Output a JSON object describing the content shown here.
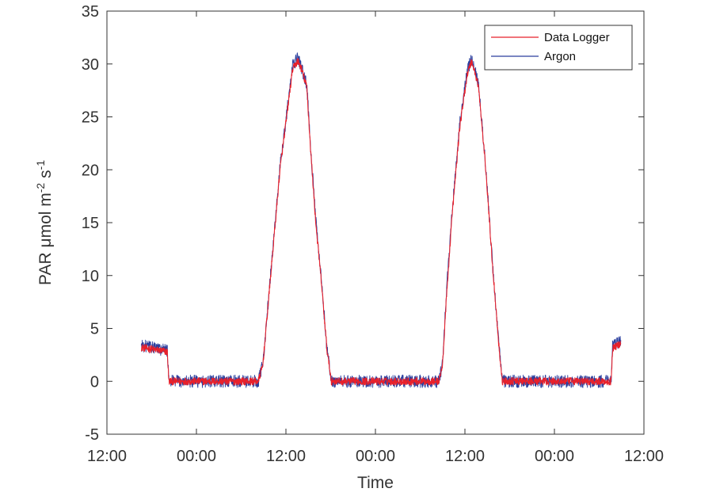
{
  "chart_data": {
    "type": "line",
    "title": "",
    "xlabel": "Time",
    "ylabel": "PAR μmol m-2 s-1",
    "ylabel_parts": {
      "main": "PAR  μmol m",
      "exp1": "-2",
      "mid": " s",
      "exp2": "-1"
    },
    "x_ticks": [
      "12:00",
      "00:00",
      "12:00",
      "00:00",
      "12:00",
      "00:00",
      "12:00"
    ],
    "x_unit": "hours_from_first_tick",
    "xlim": [
      0,
      72
    ],
    "y_ticks": [
      -5,
      0,
      5,
      10,
      15,
      20,
      25,
      30,
      35
    ],
    "ylim": [
      -5,
      35
    ],
    "grid": false,
    "legend_position": "top-right",
    "series": [
      {
        "name": "Data Logger",
        "color": "#e8212b",
        "points": [
          [
            4.6,
            3.2
          ],
          [
            8.1,
            2.8
          ],
          [
            8.3,
            0
          ],
          [
            20.3,
            0
          ],
          [
            20.9,
            1.5
          ],
          [
            23.2,
            20
          ],
          [
            24.9,
            29.5
          ],
          [
            25.6,
            30.3
          ],
          [
            26.1,
            29.5
          ],
          [
            26.8,
            27.8
          ],
          [
            27.3,
            22
          ],
          [
            28.0,
            15
          ],
          [
            28.8,
            9
          ],
          [
            29.5,
            3
          ],
          [
            30.1,
            0
          ],
          [
            44.5,
            0
          ],
          [
            45.0,
            1.5
          ],
          [
            45.4,
            6.5
          ],
          [
            46.2,
            15
          ],
          [
            47.3,
            24
          ],
          [
            48.3,
            29
          ],
          [
            48.9,
            30.3
          ],
          [
            49.8,
            28
          ],
          [
            50.8,
            20
          ],
          [
            51.7,
            11
          ],
          [
            52.6,
            3
          ],
          [
            53.0,
            0
          ],
          [
            67.6,
            0
          ],
          [
            67.8,
            3.1
          ],
          [
            68.9,
            3.6
          ]
        ]
      },
      {
        "name": "Argon",
        "color": "#2b3f9e",
        "points": [
          [
            4.6,
            3.4
          ],
          [
            8.1,
            2.9
          ],
          [
            8.3,
            0
          ],
          [
            20.3,
            0
          ],
          [
            20.9,
            1.6
          ],
          [
            23.2,
            20.2
          ],
          [
            24.9,
            29.8
          ],
          [
            25.6,
            30.6
          ],
          [
            26.1,
            29.6
          ],
          [
            26.8,
            28
          ],
          [
            27.3,
            22.3
          ],
          [
            28.0,
            15.2
          ],
          [
            28.8,
            9.1
          ],
          [
            29.5,
            3.1
          ],
          [
            30.1,
            0
          ],
          [
            44.5,
            0
          ],
          [
            45.0,
            1.6
          ],
          [
            45.4,
            7.2
          ],
          [
            46.2,
            15.3
          ],
          [
            47.3,
            24.4
          ],
          [
            48.3,
            29.3
          ],
          [
            48.9,
            30.5
          ],
          [
            49.8,
            28.3
          ],
          [
            50.8,
            20.2
          ],
          [
            51.7,
            11.1
          ],
          [
            52.6,
            3.1
          ],
          [
            53.0,
            0
          ],
          [
            67.6,
            0
          ],
          [
            67.8,
            3.3
          ],
          [
            68.9,
            3.9
          ]
        ]
      }
    ]
  }
}
